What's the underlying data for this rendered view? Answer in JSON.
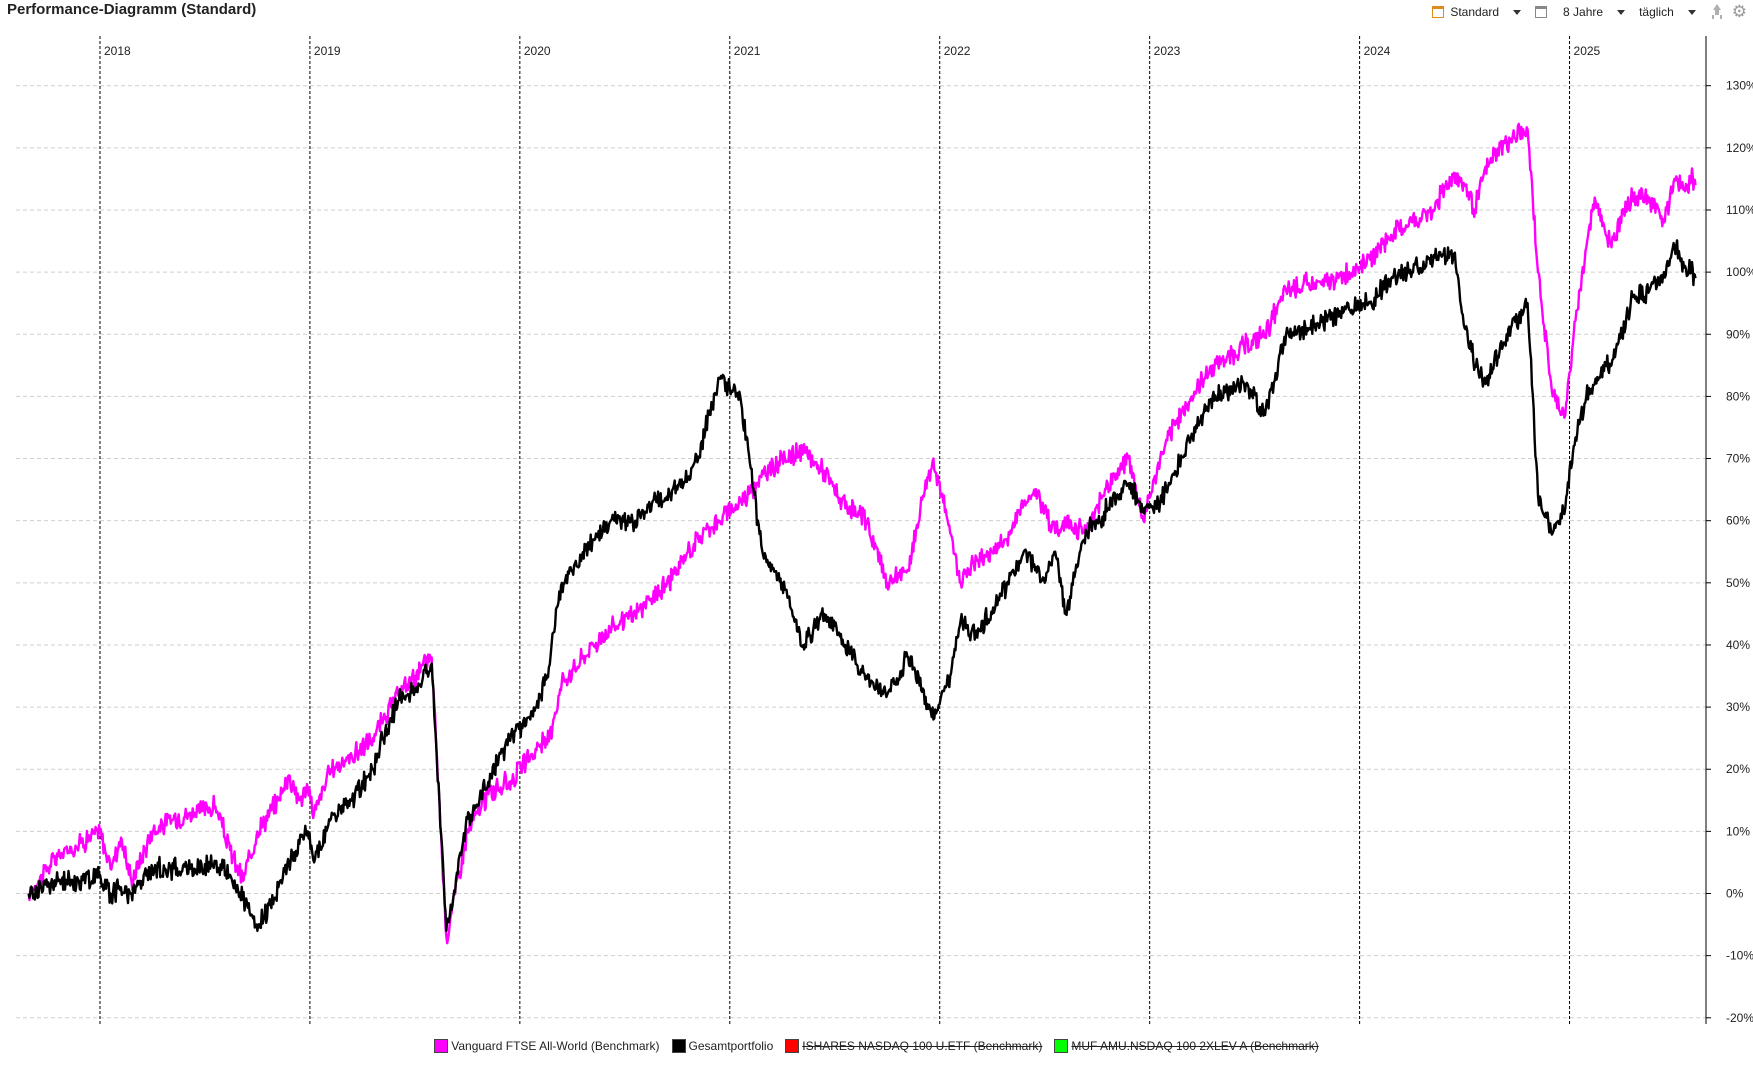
{
  "window": {
    "title": "Performance-Diagramm (Standard)"
  },
  "toolbar": {
    "view_label": "Standard",
    "view_icon": "calendar-icon",
    "range_label": "8 Jahre",
    "range_icon": "date-range-icon",
    "interval_label": "täglich",
    "export_icon": "export-icon",
    "settings_icon": "gear-icon"
  },
  "colors": {
    "grid_vertical": "#000000",
    "grid_horizontal": "#cfcfcf",
    "axis": "#000000",
    "background": "#ffffff"
  },
  "legend": [
    {
      "label": "Vanguard FTSE All-World  (Benchmark)",
      "color": "#ff00ff",
      "enabled": true
    },
    {
      "label": "Gesamtportfolio",
      "color": "#000000",
      "enabled": true
    },
    {
      "label": "ISHARES NASDAQ  100 U.ETF (Benchmark)",
      "color": "#ff0000",
      "enabled": false
    },
    {
      "label": "MUF  AMU.NSDAQ  100 2XLEV A (Benchmark)",
      "color": "#00ff00",
      "enabled": false
    }
  ],
  "chart_data": {
    "type": "line",
    "x_unit": "year",
    "y_unit": "%",
    "xlim": [
      2017.6,
      2025.65
    ],
    "ylim": [
      -21,
      138
    ],
    "year_ticks": [
      "2018",
      "2019",
      "2020",
      "2021",
      "2022",
      "2023",
      "2024",
      "2025"
    ],
    "year_tick_positions": [
      2018,
      2019,
      2020,
      2021,
      2022,
      2023,
      2024,
      2025
    ],
    "y_ticks": [
      -20,
      -10,
      0,
      10,
      20,
      30,
      40,
      50,
      60,
      70,
      80,
      90,
      100,
      110,
      120,
      130
    ],
    "y_tick_labels": [
      "-20%",
      "-10%",
      "0%",
      "10%",
      "20%",
      "30%",
      "40%",
      "50%",
      "60%",
      "70%",
      "80%",
      "90%",
      "100%",
      "110%",
      "120%",
      "130%"
    ],
    "grid": true,
    "legend_position": "bottom",
    "series": [
      {
        "name": "Vanguard FTSE All-World  (Benchmark)",
        "color": "#ff00ff",
        "x": [
          2017.66,
          2017.72,
          2017.8,
          2017.9,
          2018.0,
          2018.05,
          2018.1,
          2018.15,
          2018.2,
          2018.25,
          2018.35,
          2018.45,
          2018.55,
          2018.62,
          2018.68,
          2018.75,
          2018.85,
          2018.9,
          2018.95,
          2018.99,
          2019.02,
          2019.1,
          2019.2,
          2019.3,
          2019.35,
          2019.42,
          2019.5,
          2019.58,
          2019.65,
          2019.75,
          2019.85,
          2019.95,
          2020.05,
          2020.1,
          2020.13,
          2020.16,
          2020.2,
          2020.25,
          2020.35,
          2020.45,
          2020.55,
          2020.65,
          2020.75,
          2020.8,
          2020.85,
          2020.9,
          2020.95,
          2021.05,
          2021.15,
          2021.25,
          2021.35,
          2021.45,
          2021.55,
          2021.65,
          2021.75,
          2021.85,
          2021.92,
          2021.97,
          2022.05,
          2022.1,
          2022.15,
          2022.25,
          2022.32,
          2022.4,
          2022.45,
          2022.5,
          2022.55,
          2022.6,
          2022.7,
          2022.8,
          2022.9,
          2022.97,
          2023.05,
          2023.1,
          2023.2,
          2023.3,
          2023.45,
          2023.55,
          2023.65,
          2023.75,
          2023.82,
          2023.95,
          2024.05,
          2024.15,
          2024.25,
          2024.35,
          2024.45,
          2024.5,
          2024.55,
          2024.6,
          2024.7,
          2024.8,
          2024.85,
          2024.92,
          2024.98,
          2025.02,
          2025.08,
          2025.12,
          2025.16,
          2025.2,
          2025.25,
          2025.3,
          2025.38,
          2025.45,
          2025.5,
          2025.55,
          2025.58,
          2025.6
        ],
        "y": [
          0,
          3,
          6,
          8,
          10,
          4,
          9,
          2,
          6,
          10,
          12,
          13,
          14,
          7,
          2,
          10,
          15,
          19,
          15,
          17,
          13,
          20,
          22,
          25,
          28,
          32,
          35,
          38,
          -7,
          10,
          16,
          18,
          22,
          24,
          24,
          28,
          34,
          36,
          40,
          43,
          45,
          48,
          52,
          55,
          57,
          59,
          60,
          63,
          67,
          70,
          71,
          68,
          62,
          60,
          50,
          52,
          64,
          70,
          58,
          50,
          53,
          55,
          57,
          63,
          65,
          62,
          58,
          60,
          58,
          66,
          70,
          60,
          70,
          74,
          80,
          85,
          88,
          90,
          97,
          98,
          98,
          100,
          102,
          106,
          108,
          110,
          116,
          114,
          110,
          117,
          121,
          123,
          100,
          80,
          77,
          90,
          104,
          112,
          108,
          104,
          110,
          112,
          112,
          108,
          115,
          113,
          115,
          114
        ]
      },
      {
        "name": "Gesamtportfolio",
        "color": "#000000",
        "x": [
          2017.66,
          2017.72,
          2017.8,
          2017.9,
          2018.0,
          2018.05,
          2018.1,
          2018.15,
          2018.2,
          2018.25,
          2018.35,
          2018.45,
          2018.55,
          2018.62,
          2018.68,
          2018.75,
          2018.85,
          2018.9,
          2018.95,
          2018.99,
          2019.02,
          2019.1,
          2019.2,
          2019.3,
          2019.35,
          2019.42,
          2019.5,
          2019.58,
          2019.65,
          2019.75,
          2019.85,
          2019.95,
          2020.05,
          2020.1,
          2020.13,
          2020.16,
          2020.2,
          2020.25,
          2020.35,
          2020.45,
          2020.55,
          2020.65,
          2020.75,
          2020.8,
          2020.85,
          2020.9,
          2020.95,
          2021.05,
          2021.15,
          2021.25,
          2021.35,
          2021.45,
          2021.55,
          2021.65,
          2021.75,
          2021.85,
          2021.92,
          2021.97,
          2022.05,
          2022.1,
          2022.15,
          2022.25,
          2022.32,
          2022.4,
          2022.45,
          2022.5,
          2022.55,
          2022.6,
          2022.7,
          2022.8,
          2022.9,
          2022.97,
          2023.05,
          2023.1,
          2023.2,
          2023.3,
          2023.45,
          2023.55,
          2023.65,
          2023.75,
          2023.82,
          2023.95,
          2024.05,
          2024.15,
          2024.25,
          2024.35,
          2024.45,
          2024.5,
          2024.55,
          2024.6,
          2024.7,
          2024.8,
          2024.85,
          2024.92,
          2024.98,
          2025.02,
          2025.08,
          2025.12,
          2025.16,
          2025.2,
          2025.25,
          2025.3,
          2025.38,
          2025.45,
          2025.5,
          2025.55,
          2025.58,
          2025.6
        ],
        "y": [
          0,
          1,
          2,
          2,
          3,
          0,
          1,
          0,
          2,
          4,
          4,
          4,
          5,
          3,
          -1,
          -6,
          1,
          5,
          8,
          10,
          5,
          12,
          15,
          20,
          25,
          31,
          33,
          37,
          -6,
          12,
          18,
          25,
          28,
          32,
          35,
          42,
          50,
          52,
          57,
          60,
          60,
          63,
          65,
          67,
          70,
          77,
          83,
          80,
          56,
          50,
          40,
          45,
          40,
          35,
          32,
          38,
          33,
          28,
          35,
          44,
          42,
          45,
          50,
          55,
          53,
          50,
          55,
          45,
          58,
          62,
          66,
          62,
          63,
          66,
          74,
          80,
          82,
          77,
          90,
          91,
          92,
          94,
          95,
          99,
          100,
          102,
          103,
          91,
          85,
          82,
          90,
          95,
          64,
          58,
          62,
          72,
          80,
          82,
          85,
          85,
          90,
          96,
          97,
          100,
          104,
          101,
          100,
          99
        ]
      }
    ]
  }
}
